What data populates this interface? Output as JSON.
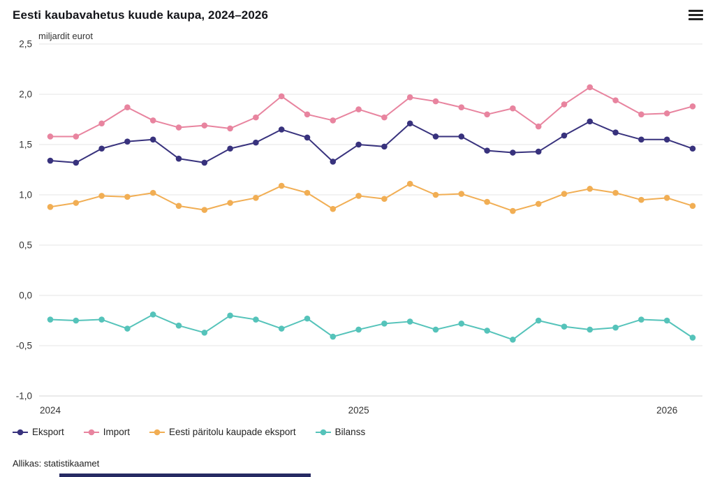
{
  "chart": {
    "title": "Eesti kaubavahetus kuude kaupa, 2024–2026",
    "y_axis_title": "miljardit eurot",
    "source": "Allikas: statistikaamet",
    "menu_icon": "hamburger-icon"
  },
  "chart_data": {
    "type": "line",
    "title": "Eesti kaubavahetus kuude kaupa, 2024–2026",
    "ylabel": "miljardit eurot",
    "ylim": [
      -1.0,
      2.5
    ],
    "grid": true,
    "legend_position": "bottom",
    "x": [
      "2024-01",
      "2024-02",
      "2024-03",
      "2024-04",
      "2024-05",
      "2024-06",
      "2024-07",
      "2024-08",
      "2024-09",
      "2024-10",
      "2024-11",
      "2024-12",
      "2025-01",
      "2025-02",
      "2025-03",
      "2025-04",
      "2025-05",
      "2025-06",
      "2025-07",
      "2025-08",
      "2025-09",
      "2025-10",
      "2025-11",
      "2025-12",
      "2026-01",
      "2026-02"
    ],
    "x_tick_labels": [
      {
        "index": 0,
        "label": "2024"
      },
      {
        "index": 12,
        "label": "2025"
      },
      {
        "index": 24,
        "label": "2026"
      }
    ],
    "y_ticks": [
      {
        "value": 2.5,
        "label": "2,5"
      },
      {
        "value": 2.0,
        "label": "2,0"
      },
      {
        "value": 1.5,
        "label": "1,5"
      },
      {
        "value": 1.0,
        "label": "1,0"
      },
      {
        "value": 0.5,
        "label": "0,5"
      },
      {
        "value": 0.0,
        "label": "0,0"
      },
      {
        "value": -0.5,
        "label": "-0,5"
      },
      {
        "value": -1.0,
        "label": "-1,0"
      }
    ],
    "series": [
      {
        "key": "eksport",
        "name": "Eksport",
        "color": "#38327d",
        "values": [
          1.34,
          1.32,
          1.46,
          1.53,
          1.55,
          1.36,
          1.32,
          1.46,
          1.52,
          1.65,
          1.57,
          1.33,
          1.5,
          1.48,
          1.71,
          1.58,
          1.58,
          1.44,
          1.42,
          1.43,
          1.59,
          1.73,
          1.62,
          1.55,
          1.55,
          1.46
        ]
      },
      {
        "key": "import",
        "name": "Import",
        "color": "#e8849f",
        "values": [
          1.58,
          1.58,
          1.71,
          1.87,
          1.74,
          1.67,
          1.69,
          1.66,
          1.77,
          1.98,
          1.8,
          1.74,
          1.85,
          1.77,
          1.97,
          1.93,
          1.87,
          1.8,
          1.86,
          1.68,
          1.9,
          2.07,
          1.94,
          1.8,
          1.81,
          1.88
        ]
      },
      {
        "key": "eesti-paritolu-kaupade-eksport",
        "name": "Eesti päritolu kaupade eksport",
        "color": "#f1ae54",
        "values": [
          0.88,
          0.92,
          0.99,
          0.98,
          1.02,
          0.89,
          0.85,
          0.92,
          0.97,
          1.09,
          1.02,
          0.86,
          0.99,
          0.96,
          1.11,
          1.0,
          1.01,
          0.93,
          0.84,
          0.91,
          1.01,
          1.06,
          1.02,
          0.95,
          0.97,
          0.89
        ]
      },
      {
        "key": "bilanss",
        "name": "Bilanss",
        "color": "#55c3ba",
        "values": [
          -0.24,
          -0.25,
          -0.24,
          -0.33,
          -0.19,
          -0.3,
          -0.37,
          -0.2,
          -0.24,
          -0.33,
          -0.23,
          -0.41,
          -0.34,
          -0.28,
          -0.26,
          -0.34,
          -0.28,
          -0.35,
          -0.44,
          -0.25,
          -0.31,
          -0.34,
          -0.32,
          -0.24,
          -0.25,
          -0.42
        ]
      }
    ]
  }
}
